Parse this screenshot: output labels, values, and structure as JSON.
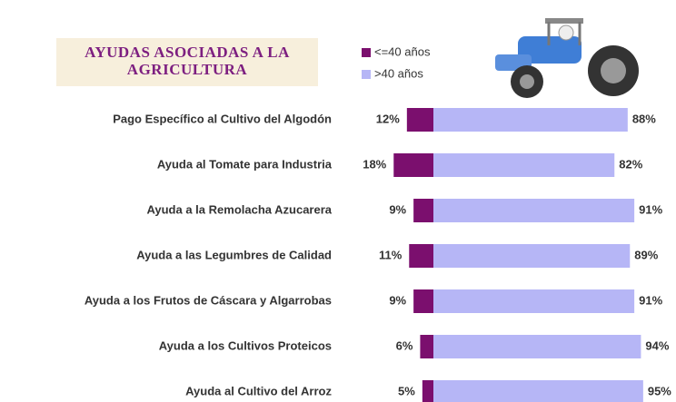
{
  "chart_data": {
    "type": "diverging-bar",
    "title": "AYUDAS ASOCIADAS A LA AGRICULTURA",
    "categories": [
      "Pago Específico al Cultivo del Algodón",
      "Ayuda al Tomate para Industria",
      "Ayuda a la Remolacha Azucarera",
      "Ayuda a las Legumbres de Calidad",
      "Ayuda a los Frutos de Cáscara y Algarrobas",
      "Ayuda a los Cultivos Proteicos",
      "Ayuda al Cultivo del Arroz"
    ],
    "series": [
      {
        "name": "<=40 años",
        "color": "#7b0f6e",
        "values": [
          12,
          18,
          9,
          11,
          9,
          6,
          5
        ],
        "value_labels": [
          "12%",
          "18%",
          "9%",
          "11%",
          "9%",
          "6%",
          "5%"
        ]
      },
      {
        "name": ">40 años",
        "color": "#b6b6f6",
        "values": [
          88,
          82,
          91,
          89,
          91,
          94,
          95
        ],
        "value_labels": [
          "88%",
          "82%",
          "91%",
          "89%",
          "91%",
          "94%",
          "95%"
        ]
      }
    ]
  }
}
